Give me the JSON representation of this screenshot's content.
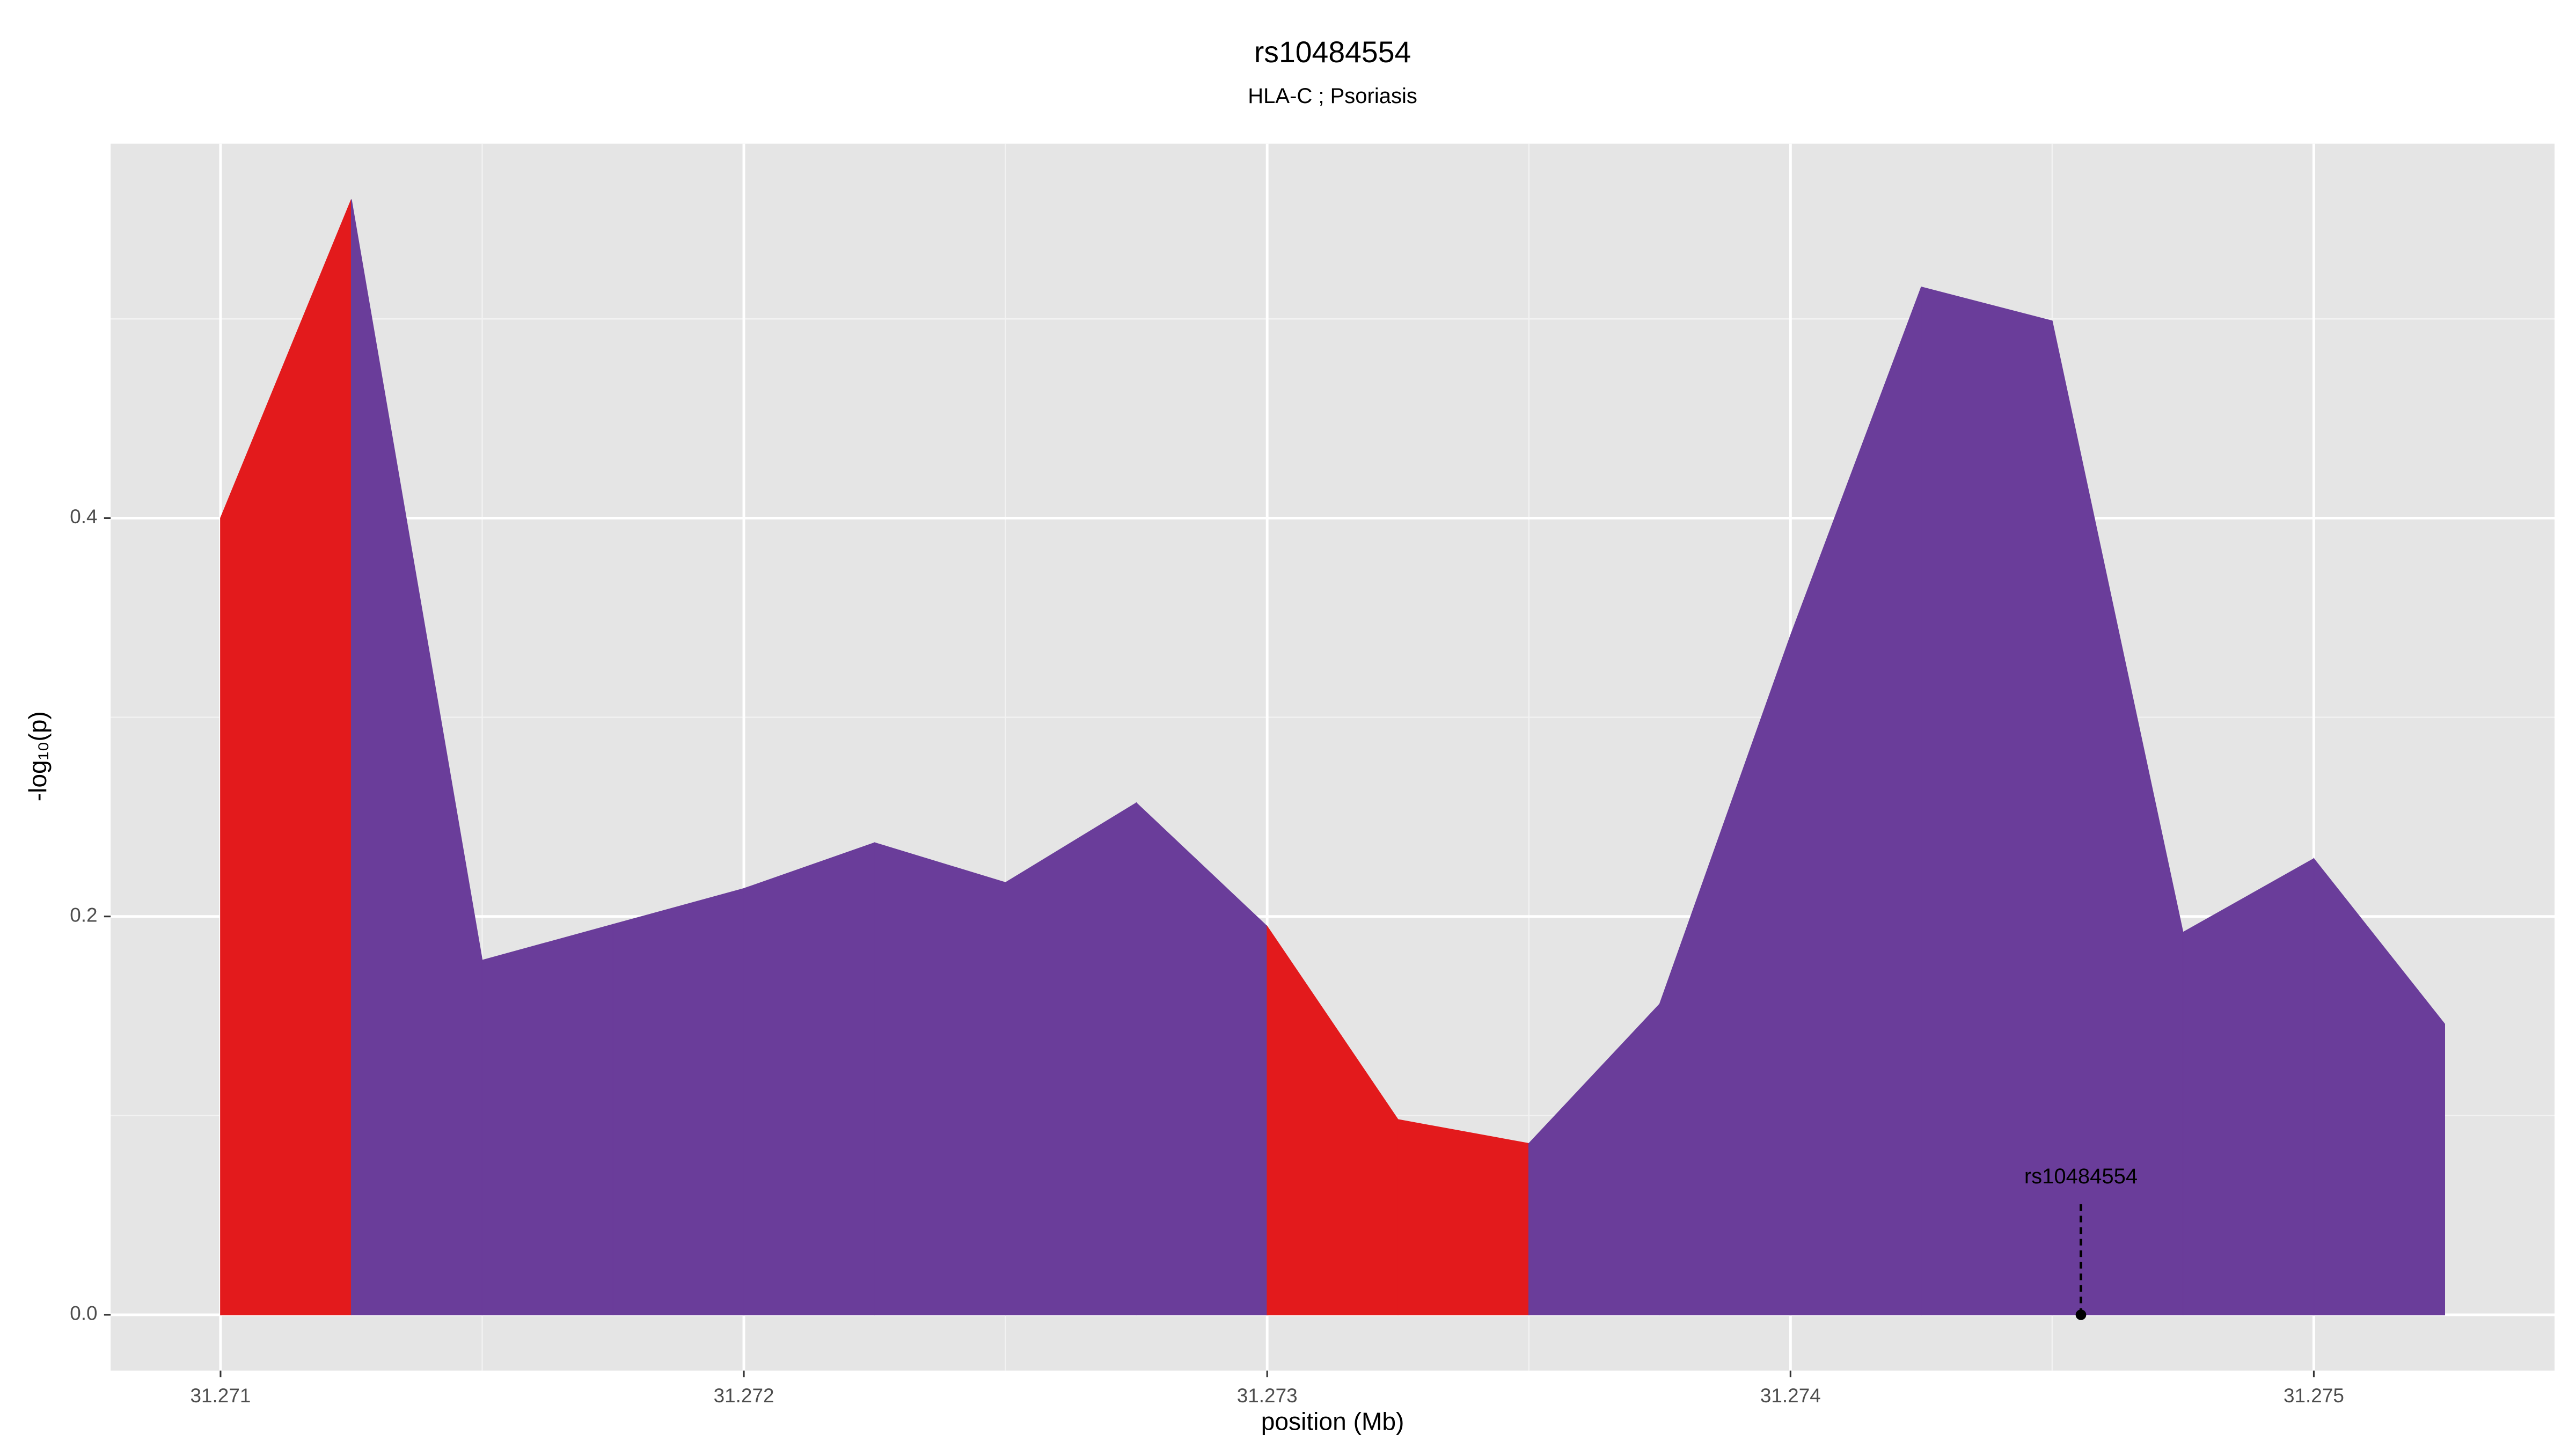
{
  "chart_data": {
    "type": "area",
    "title": "rs10484554",
    "subtitle": "HLA-C ; Psoriasis",
    "xlabel": "position (Mb)",
    "ylabel": "-log₁₀(p)",
    "x": [
      31.271,
      31.27125,
      31.2715,
      31.27175,
      31.272,
      31.27225,
      31.2725,
      31.27275,
      31.273,
      31.27325,
      31.2735,
      31.27375,
      31.274,
      31.27425,
      31.2745,
      31.27475,
      31.275,
      31.27525
    ],
    "values": [
      0.4,
      0.56,
      0.178,
      0.196,
      0.214,
      0.237,
      0.217,
      0.257,
      0.195,
      0.098,
      0.086,
      0.156,
      0.341,
      0.516,
      0.499,
      0.192,
      0.229,
      0.146
    ],
    "segment_colors": [
      "#e31a1c",
      "#6a3d9a",
      "#6a3d9a",
      "#6a3d9a",
      "#6a3d9a",
      "#6a3d9a",
      "#6a3d9a",
      "#6a3d9a",
      "#e31a1c",
      "#e31a1c",
      "#6a3d9a",
      "#6a3d9a",
      "#6a3d9a",
      "#6a3d9a",
      "#6a3d9a",
      "#6a3d9a",
      "#6a3d9a"
    ],
    "annotation": {
      "text": "rs10484554",
      "x": 31.274555,
      "y": 0
    },
    "xlim": [
      31.27079,
      31.27546
    ],
    "ylim": [
      -0.028,
      0.588
    ],
    "xticks": [
      31.271,
      31.272,
      31.273,
      31.274,
      31.275
    ],
    "yticks": [
      {
        "value": 0,
        "label": "0.0"
      },
      0.2,
      0.4
    ],
    "grid": true
  }
}
